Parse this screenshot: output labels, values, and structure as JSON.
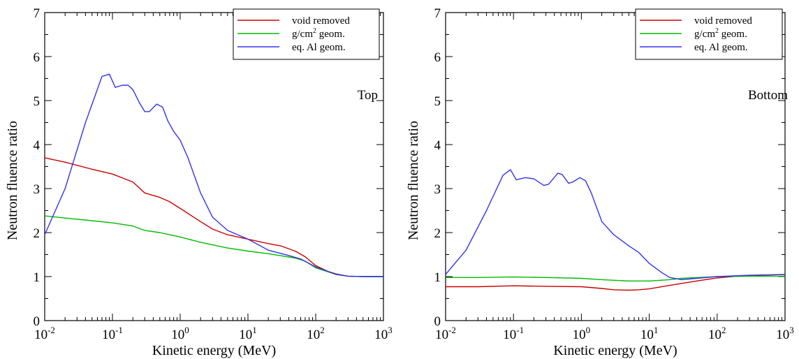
{
  "chart_data": [
    {
      "type": "line",
      "annotation": "Top",
      "xlabel": "Kinetic energy (MeV)",
      "ylabel": "Neutron fluence ratio",
      "x_scale": "log",
      "xlim": [
        0.01,
        1000
      ],
      "ylim": [
        0,
        7
      ],
      "x_ticks": [
        0.01,
        0.1,
        1,
        10,
        100,
        1000
      ],
      "x_tick_labels": [
        {
          "base": "10",
          "exp": "-2"
        },
        {
          "base": "10",
          "exp": "-1"
        },
        {
          "base": "10",
          "exp": "0"
        },
        {
          "base": "10",
          "exp": "1"
        },
        {
          "base": "10",
          "exp": "2"
        },
        {
          "base": "10",
          "exp": "3"
        }
      ],
      "y_ticks": [
        0,
        1,
        2,
        3,
        4,
        5,
        6,
        7
      ],
      "grid": false,
      "legend_position": "top-right",
      "series": [
        {
          "name": "void removed",
          "color": "#cc0000",
          "points": [
            [
              0.01,
              3.7
            ],
            [
              0.02,
              3.6
            ],
            [
              0.05,
              3.44
            ],
            [
              0.1,
              3.33
            ],
            [
              0.2,
              3.15
            ],
            [
              0.3,
              2.9
            ],
            [
              0.5,
              2.8
            ],
            [
              0.7,
              2.7
            ],
            [
              1,
              2.55
            ],
            [
              2,
              2.25
            ],
            [
              3,
              2.08
            ],
            [
              5,
              1.95
            ],
            [
              10,
              1.85
            ],
            [
              20,
              1.75
            ],
            [
              30,
              1.7
            ],
            [
              50,
              1.58
            ],
            [
              70,
              1.45
            ],
            [
              100,
              1.25
            ],
            [
              150,
              1.12
            ],
            [
              200,
              1.06
            ],
            [
              300,
              1.01
            ],
            [
              500,
              1.0
            ],
            [
              1000,
              1.0
            ]
          ]
        },
        {
          "name": "g/cm² geom.",
          "color": "#00bb00",
          "points": [
            [
              0.01,
              2.38
            ],
            [
              0.02,
              2.33
            ],
            [
              0.05,
              2.27
            ],
            [
              0.1,
              2.22
            ],
            [
              0.2,
              2.15
            ],
            [
              0.3,
              2.05
            ],
            [
              0.5,
              2.0
            ],
            [
              1,
              1.9
            ],
            [
              2,
              1.78
            ],
            [
              5,
              1.65
            ],
            [
              10,
              1.58
            ],
            [
              20,
              1.52
            ],
            [
              50,
              1.42
            ],
            [
              70,
              1.35
            ],
            [
              100,
              1.2
            ],
            [
              200,
              1.05
            ],
            [
              300,
              1.01
            ],
            [
              500,
              1.0
            ],
            [
              1000,
              1.0
            ]
          ]
        },
        {
          "name": "eq. Al geom.",
          "color": "#3333ee",
          "points": [
            [
              0.01,
              1.95
            ],
            [
              0.02,
              3.0
            ],
            [
              0.04,
              4.5
            ],
            [
              0.07,
              5.55
            ],
            [
              0.09,
              5.6
            ],
            [
              0.11,
              5.3
            ],
            [
              0.14,
              5.35
            ],
            [
              0.17,
              5.35
            ],
            [
              0.2,
              5.25
            ],
            [
              0.25,
              4.95
            ],
            [
              0.3,
              4.75
            ],
            [
              0.35,
              4.75
            ],
            [
              0.45,
              4.92
            ],
            [
              0.55,
              4.85
            ],
            [
              0.65,
              4.55
            ],
            [
              0.8,
              4.3
            ],
            [
              1,
              4.1
            ],
            [
              1.3,
              3.7
            ],
            [
              2,
              2.9
            ],
            [
              3,
              2.35
            ],
            [
              5,
              2.05
            ],
            [
              10,
              1.85
            ],
            [
              20,
              1.6
            ],
            [
              40,
              1.48
            ],
            [
              60,
              1.4
            ],
            [
              100,
              1.22
            ],
            [
              200,
              1.05
            ],
            [
              300,
              1.01
            ],
            [
              500,
              1.0
            ],
            [
              1000,
              1.0
            ]
          ]
        }
      ]
    },
    {
      "type": "line",
      "annotation": "Bottom",
      "xlabel": "Kinetic energy (MeV)",
      "ylabel": "Neutron fluence ratio",
      "x_scale": "log",
      "xlim": [
        0.01,
        1000
      ],
      "ylim": [
        0,
        7
      ],
      "x_ticks": [
        0.01,
        0.1,
        1,
        10,
        100,
        1000
      ],
      "x_tick_labels": [
        {
          "base": "10",
          "exp": "-2"
        },
        {
          "base": "10",
          "exp": "-1"
        },
        {
          "base": "10",
          "exp": "0"
        },
        {
          "base": "10",
          "exp": "1"
        },
        {
          "base": "10",
          "exp": "2"
        },
        {
          "base": "10",
          "exp": "3"
        }
      ],
      "y_ticks": [
        0,
        1,
        2,
        3,
        4,
        5,
        6,
        7
      ],
      "grid": false,
      "legend_position": "top-right",
      "series": [
        {
          "name": "void removed",
          "color": "#cc0000",
          "points": [
            [
              0.01,
              0.77
            ],
            [
              0.03,
              0.77
            ],
            [
              0.1,
              0.79
            ],
            [
              0.3,
              0.78
            ],
            [
              1,
              0.77
            ],
            [
              2,
              0.73
            ],
            [
              3,
              0.7
            ],
            [
              5,
              0.69
            ],
            [
              7,
              0.7
            ],
            [
              10,
              0.72
            ],
            [
              20,
              0.8
            ],
            [
              50,
              0.9
            ],
            [
              100,
              0.97
            ],
            [
              200,
              1.01
            ],
            [
              500,
              1.03
            ],
            [
              1000,
              1.05
            ]
          ]
        },
        {
          "name": "g/cm² geom.",
          "color": "#00bb00",
          "points": [
            [
              0.01,
              0.98
            ],
            [
              0.03,
              0.98
            ],
            [
              0.1,
              0.99
            ],
            [
              0.3,
              0.98
            ],
            [
              1,
              0.96
            ],
            [
              2,
              0.93
            ],
            [
              5,
              0.9
            ],
            [
              10,
              0.9
            ],
            [
              20,
              0.93
            ],
            [
              30,
              0.96
            ],
            [
              100,
              1.0
            ],
            [
              300,
              1.01
            ],
            [
              1000,
              1.01
            ]
          ]
        },
        {
          "name": "eq. Al geom.",
          "color": "#3333ee",
          "points": [
            [
              0.01,
              1.05
            ],
            [
              0.02,
              1.6
            ],
            [
              0.04,
              2.5
            ],
            [
              0.07,
              3.3
            ],
            [
              0.09,
              3.43
            ],
            [
              0.11,
              3.2
            ],
            [
              0.15,
              3.25
            ],
            [
              0.2,
              3.22
            ],
            [
              0.28,
              3.07
            ],
            [
              0.33,
              3.1
            ],
            [
              0.45,
              3.35
            ],
            [
              0.52,
              3.32
            ],
            [
              0.65,
              3.12
            ],
            [
              0.75,
              3.15
            ],
            [
              0.95,
              3.25
            ],
            [
              1.15,
              3.18
            ],
            [
              1.4,
              2.9
            ],
            [
              2,
              2.25
            ],
            [
              3,
              1.95
            ],
            [
              5,
              1.7
            ],
            [
              7,
              1.55
            ],
            [
              10,
              1.3
            ],
            [
              15,
              1.1
            ],
            [
              20,
              0.98
            ],
            [
              30,
              0.93
            ],
            [
              50,
              0.96
            ],
            [
              100,
              1.0
            ],
            [
              300,
              1.03
            ],
            [
              1000,
              1.05
            ]
          ]
        }
      ]
    }
  ]
}
